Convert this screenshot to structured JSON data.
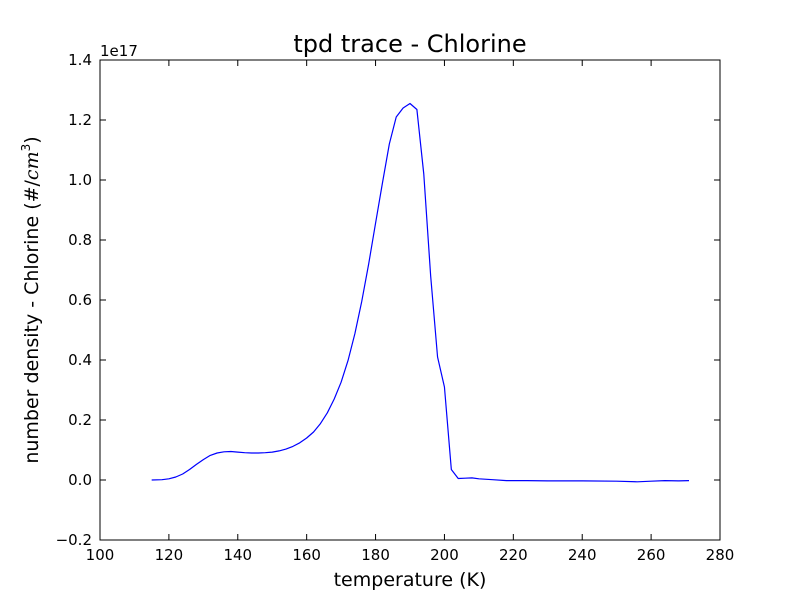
{
  "chart_data": {
    "type": "line",
    "title": "tpd trace - Chlorine",
    "xlabel": "temperature (K)",
    "ylabel_prefix": "number density - Chlorine (#/",
    "ylabel_unit": "cm",
    "ylabel_exponent": "3",
    "ylabel_suffix": ")",
    "y_offset_label": "1e17",
    "xlim": [
      100,
      280
    ],
    "ylim": [
      -0.2,
      1.4
    ],
    "xticks": [
      100,
      120,
      140,
      160,
      180,
      200,
      220,
      240,
      260,
      280
    ],
    "xtick_labels": [
      "100",
      "120",
      "140",
      "160",
      "180",
      "200",
      "220",
      "240",
      "260",
      "280"
    ],
    "yticks": [
      -0.2,
      0.0,
      0.2,
      0.4,
      0.6,
      0.8,
      1.0,
      1.2,
      1.4
    ],
    "ytick_labels": [
      "−0.2",
      "0.0",
      "0.2",
      "0.4",
      "0.6",
      "0.8",
      "1.0",
      "1.2",
      "1.4"
    ],
    "grid": false,
    "series": [
      {
        "color": "#0000ff",
        "x": [
          115,
          118,
          120,
          122,
          124,
          126,
          128,
          130,
          132,
          134,
          136,
          138,
          140,
          142,
          144,
          146,
          148,
          150,
          152,
          154,
          156,
          158,
          160,
          162,
          164,
          166,
          168,
          170,
          172,
          174,
          176,
          178,
          180,
          182,
          184,
          186,
          188,
          190,
          192,
          194,
          196,
          198,
          200,
          202,
          204,
          206,
          208,
          210,
          214,
          218,
          224,
          230,
          240,
          250,
          256,
          260,
          264,
          268,
          271
        ],
        "y": [
          0.0,
          0.001,
          0.004,
          0.01,
          0.02,
          0.035,
          0.052,
          0.068,
          0.082,
          0.09,
          0.094,
          0.095,
          0.093,
          0.091,
          0.09,
          0.09,
          0.091,
          0.093,
          0.097,
          0.103,
          0.112,
          0.124,
          0.14,
          0.16,
          0.188,
          0.224,
          0.27,
          0.326,
          0.398,
          0.488,
          0.596,
          0.72,
          0.856,
          0.99,
          1.12,
          1.21,
          1.24,
          1.255,
          1.235,
          1.02,
          0.68,
          0.41,
          0.31,
          0.035,
          0.005,
          0.006,
          0.007,
          0.004,
          0.001,
          -0.002,
          -0.002,
          -0.003,
          -0.003,
          -0.004,
          -0.006,
          -0.004,
          -0.002,
          -0.003,
          -0.002
        ]
      }
    ]
  }
}
